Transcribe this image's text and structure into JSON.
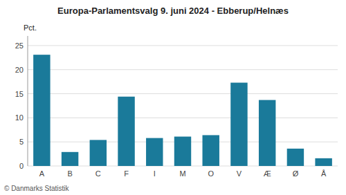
{
  "chart_data": {
    "type": "bar",
    "title": "Europa-Parlamentsvalg 9. juni 2024 - Ebberup/Helnæs",
    "ylabel": "Pct.",
    "annotations": [
      "© Danmarks Statistik"
    ],
    "categories": [
      "A",
      "B",
      "C",
      "F",
      "I",
      "M",
      "O",
      "V",
      "Æ",
      "Ø",
      "Å"
    ],
    "values": [
      23.1,
      2.9,
      5.4,
      14.4,
      5.8,
      6.1,
      6.4,
      17.3,
      13.7,
      3.6,
      1.6
    ],
    "color": "#1a7a9a",
    "ylim": [
      0,
      27
    ],
    "yticks": [
      0,
      5,
      10,
      15,
      20,
      25
    ],
    "grid": true
  }
}
